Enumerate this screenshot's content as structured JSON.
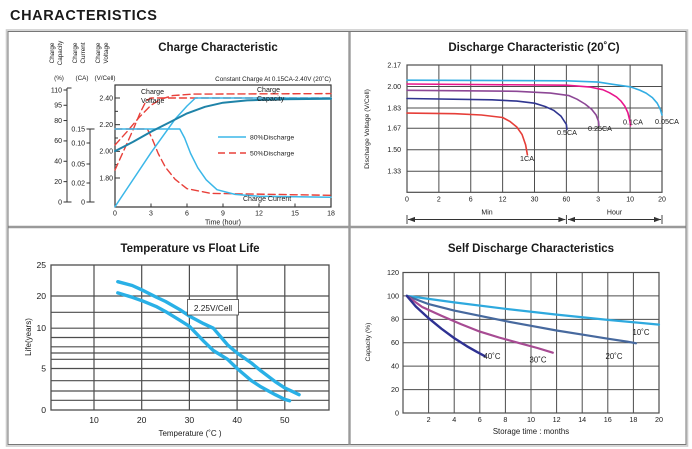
{
  "page": {
    "header": "CHARACTERISTICS",
    "accent_color": "#00a5dc"
  },
  "chart_data": [
    {
      "type": "line",
      "title": "Charge Characteristic",
      "subtitle": "Constant Charge At 0.15CA-2.40V  (20˚C)",
      "xlabel": "Time (hour)",
      "x_ticks": [
        0,
        3,
        6,
        9,
        12,
        15,
        18
      ],
      "axes": {
        "capacity": {
          "title_words": [
            "Charge",
            "Capacity"
          ],
          "unit": "(%)",
          "ticks": {
            "labels": [
              "110",
              "95",
              "80",
              "60",
              "40",
              "20",
              "0"
            ],
            "values": [
              110,
              95,
              80,
              60,
              40,
              20,
              0
            ]
          }
        },
        "current": {
          "title_words": [
            "Charge",
            "Current"
          ],
          "unit": "(CA)",
          "ticks": {
            "labels": [
              "0.15",
              "0.10",
              "0.05",
              "0.02",
              "0"
            ],
            "values": [
              0.15,
              0.1,
              0.05,
              0.02,
              0
            ]
          }
        },
        "voltage": {
          "title_words": [
            "Charge",
            "Voltage"
          ],
          "unit": "(V/Cell)",
          "ticks": {
            "labels": [
              "2.40",
              "2.20",
              "2.00",
              "1.80"
            ],
            "values": [
              2.4,
              2.2,
              2.0,
              1.8
            ]
          }
        }
      },
      "legend": [
        {
          "label": "80%Discharge",
          "color": "#3bb7e8",
          "dash": null
        },
        {
          "label": "50%Discharge",
          "color": "#e8403a",
          "dash": "7 4"
        }
      ],
      "annotations": {
        "voltage": [
          "Charge",
          "Voltage"
        ],
        "capacity": [
          "Charge",
          "Capacity"
        ],
        "current": "Charge Current"
      },
      "series": [
        {
          "name": "Charge Voltage (50% discharged)",
          "scale": "voltage",
          "color": "#e8403a",
          "dash": "7 4",
          "width": 1.4,
          "points": [
            [
              0,
              1.86
            ],
            [
              0.8,
              2.02
            ],
            [
              1.5,
              2.16
            ],
            [
              2.1,
              2.29
            ],
            [
              2.6,
              2.38
            ],
            [
              3,
              2.4
            ],
            [
              18,
              2.4
            ]
          ]
        },
        {
          "name": "Charge Capacity (50% discharged)",
          "scale": "capacity",
          "color": "#e8403a",
          "dash": "7 4",
          "width": 1.4,
          "points": [
            [
              0,
              56
            ],
            [
              1,
              69
            ],
            [
              2,
              83
            ],
            [
              3,
              95
            ],
            [
              3.8,
              101
            ],
            [
              4.8,
              104.5
            ],
            [
              6.5,
              106
            ],
            [
              18,
              106.5
            ]
          ]
        },
        {
          "name": "Charge Current (50% discharged)",
          "scale": "current",
          "color": "#e8403a",
          "dash": "7 4",
          "width": 1.4,
          "points": [
            [
              0,
              0.15
            ],
            [
              2.7,
              0.15
            ],
            [
              3.1,
              0.115
            ],
            [
              3.6,
              0.075
            ],
            [
              4.2,
              0.045
            ],
            [
              5,
              0.026
            ],
            [
              6,
              0.014
            ],
            [
              8,
              0.009
            ],
            [
              18,
              0.007
            ]
          ]
        },
        {
          "name": "Charge Voltage (80% discharged)",
          "scale": "voltage",
          "color": "#3bb7e8",
          "dash": null,
          "width": 1.5,
          "points": [
            [
              0,
              1.585
            ],
            [
              3,
              1.99
            ],
            [
              5,
              2.24
            ],
            [
              6,
              2.34
            ],
            [
              6.7,
              2.4
            ],
            [
              18,
              2.4
            ]
          ]
        },
        {
          "name": "Charge Current (80% discharged)",
          "scale": "current",
          "color": "#3bb7e8",
          "dash": null,
          "width": 1.5,
          "points": [
            [
              0,
              0.15
            ],
            [
              5.4,
              0.15
            ],
            [
              5.8,
              0.118
            ],
            [
              6.3,
              0.075
            ],
            [
              6.9,
              0.044
            ],
            [
              7.6,
              0.025
            ],
            [
              8.5,
              0.013
            ],
            [
              10,
              0.008
            ],
            [
              12,
              0.006
            ],
            [
              18,
              0.005
            ]
          ]
        },
        {
          "name": "Charge Capacity (80% discharged)",
          "scale": "capacity",
          "color": "#1f83a8",
          "dash": null,
          "width": 2,
          "points": [
            [
              0,
              50
            ],
            [
              1.5,
              59
            ],
            [
              3,
              69
            ],
            [
              4.5,
              78
            ],
            [
              6,
              87
            ],
            [
              7.5,
              93.5
            ],
            [
              9,
              97.5
            ],
            [
              11,
              99.8
            ],
            [
              14,
              101
            ],
            [
              18,
              101.5
            ]
          ]
        }
      ]
    },
    {
      "type": "line",
      "title": "Discharge Characteristic (20˚C)",
      "ylabel": "Discharge Voltage (V/Cell)",
      "section_labels": {
        "min": "Min",
        "hour": "Hour"
      },
      "x_ticks": {
        "labels": [
          "0",
          "2",
          "6",
          "12",
          "30",
          "60",
          "3",
          "10",
          "20"
        ],
        "values": [
          0,
          2,
          6,
          12,
          30,
          60,
          180,
          600,
          1200
        ]
      },
      "y_ticks": {
        "labels": [
          "2.17",
          "2.00",
          "1.83",
          "1.67",
          "1.50",
          "1.33"
        ],
        "values": [
          2.17,
          2.0,
          1.83,
          1.67,
          1.5,
          1.33
        ]
      },
      "series": [
        {
          "name": "1CA",
          "color": "#e63e38",
          "width": 1.6,
          "points": [
            [
              0,
              1.79
            ],
            [
              4,
              1.785
            ],
            [
              8,
              1.775
            ],
            [
              12,
              1.755
            ],
            [
              16,
              1.725
            ],
            [
              20,
              1.68
            ],
            [
              23,
              1.62
            ],
            [
              25,
              1.54
            ],
            [
              26,
              1.46
            ]
          ]
        },
        {
          "name": "0.5CA",
          "color": "#2f3590",
          "width": 1.6,
          "points": [
            [
              0,
              1.905
            ],
            [
              10,
              1.895
            ],
            [
              20,
              1.885
            ],
            [
              30,
              1.868
            ],
            [
              40,
              1.842
            ],
            [
              48,
              1.812
            ],
            [
              55,
              1.765
            ],
            [
              60,
              1.7
            ],
            [
              62,
              1.66
            ]
          ]
        },
        {
          "name": "0.25CA",
          "color": "#8d4896",
          "width": 1.6,
          "points": [
            [
              0,
              1.97
            ],
            [
              20,
              1.962
            ],
            [
              45,
              1.948
            ],
            [
              70,
              1.928
            ],
            [
              100,
              1.9
            ],
            [
              130,
              1.862
            ],
            [
              155,
              1.82
            ],
            [
              172,
              1.775
            ],
            [
              183,
              1.725
            ],
            [
              188,
              1.69
            ]
          ]
        },
        {
          "name": "0.1CA",
          "color": "#e8168c",
          "width": 1.6,
          "points": [
            [
              0,
              2.02
            ],
            [
              60,
              2.01
            ],
            [
              150,
              1.995
            ],
            [
              240,
              1.975
            ],
            [
              330,
              1.95
            ],
            [
              420,
              1.918
            ],
            [
              480,
              1.885
            ],
            [
              530,
              1.845
            ],
            [
              570,
              1.795
            ],
            [
              595,
              1.735
            ],
            [
              608,
              1.69
            ]
          ]
        },
        {
          "name": "0.05CA",
          "color": "#33ade3",
          "width": 1.6,
          "points": [
            [
              0,
              2.05
            ],
            [
              60,
              2.045
            ],
            [
              180,
              2.035
            ],
            [
              360,
              2.018
            ],
            [
              600,
              1.998
            ],
            [
              780,
              1.972
            ],
            [
              900,
              1.948
            ],
            [
              1020,
              1.912
            ],
            [
              1110,
              1.868
            ],
            [
              1170,
              1.818
            ],
            [
              1200,
              1.775
            ]
          ]
        }
      ]
    },
    {
      "type": "line",
      "title": "Temperature vs Float Life",
      "ylabel": "Life(years)",
      "xlabel": "Temperature (˚C )",
      "annotation": "2.25V/Cell",
      "x_ticks": [
        10,
        20,
        30,
        40,
        50
      ],
      "y_ticks": {
        "labels": [
          "25",
          "20",
          "10",
          "5",
          "0"
        ],
        "values": [
          25,
          20,
          10,
          5,
          0
        ]
      },
      "y_gridlines": [
        2,
        3,
        4,
        5,
        6,
        7,
        8,
        9,
        10,
        15,
        20
      ],
      "series": [
        {
          "name": "float life upper",
          "color": "#29b0e6",
          "width": 3.4,
          "points": [
            [
              15,
              22.3
            ],
            [
              18,
              21.7
            ],
            [
              20,
              21
            ],
            [
              23,
              19.7
            ],
            [
              25,
              18.3
            ],
            [
              28,
              15.8
            ],
            [
              30,
              13.8
            ],
            [
              33,
              11.4
            ],
            [
              35,
              10
            ],
            [
              38,
              8.2
            ],
            [
              40,
              7
            ],
            [
              43,
              5.6
            ],
            [
              45,
              4.8
            ],
            [
              48,
              3.9
            ],
            [
              50,
              3.3
            ],
            [
              53,
              2.6
            ]
          ]
        },
        {
          "name": "float life lower",
          "color": "#29b0e6",
          "width": 3.4,
          "points": [
            [
              15,
              20.5
            ],
            [
              18,
              19.6
            ],
            [
              20,
              18.6
            ],
            [
              23,
              16.8
            ],
            [
              25,
              15.2
            ],
            [
              28,
              12.5
            ],
            [
              30,
              10.6
            ],
            [
              33,
              8.6
            ],
            [
              35,
              7.4
            ],
            [
              38,
              6
            ],
            [
              40,
              5
            ],
            [
              43,
              4
            ],
            [
              45,
              3.4
            ],
            [
              48,
              2.6
            ],
            [
              50,
              2.1
            ],
            [
              51,
              1.9
            ]
          ]
        }
      ]
    },
    {
      "type": "line",
      "title": "Self Discharge Characteristics",
      "ylabel": "Capacity (%)",
      "xlabel": "Storage time : months",
      "x_ticks": [
        2,
        4,
        6,
        8,
        10,
        12,
        14,
        16,
        18,
        20
      ],
      "y_ticks": {
        "labels": [
          "120",
          "100",
          "80",
          "60",
          "40",
          "20",
          "0"
        ],
        "values": [
          120,
          100,
          80,
          60,
          40,
          20,
          0
        ]
      },
      "series": [
        {
          "name": "10˚C",
          "color": "#2ea9de",
          "width": 2.2,
          "points": [
            [
              0.3,
              100
            ],
            [
              4,
              94.5
            ],
            [
              8,
              89
            ],
            [
              12,
              84
            ],
            [
              16,
              79.5
            ],
            [
              20,
              75.5
            ]
          ]
        },
        {
          "name": "20˚C",
          "color": "#47699e",
          "width": 2.2,
          "points": [
            [
              0.3,
              100
            ],
            [
              2,
              93
            ],
            [
              4,
              87.5
            ],
            [
              6,
              83
            ],
            [
              8,
              78.5
            ],
            [
              10,
              74.5
            ],
            [
              12,
              70.5
            ],
            [
              14,
              67
            ],
            [
              16,
              63.5
            ],
            [
              17.5,
              61
            ],
            [
              18.2,
              59.5
            ]
          ]
        },
        {
          "name": "30˚C",
          "color": "#a74b93",
          "width": 2.2,
          "points": [
            [
              0.3,
              100
            ],
            [
              1.5,
              90.5
            ],
            [
              3,
              83
            ],
            [
              4.5,
              76
            ],
            [
              6,
              69.5
            ],
            [
              7.5,
              64.5
            ],
            [
              9,
              60
            ],
            [
              10.5,
              55.5
            ],
            [
              11.7,
              51.5
            ]
          ]
        },
        {
          "name": "40˚C",
          "color": "#2e3192",
          "width": 2.4,
          "points": [
            [
              0.3,
              100
            ],
            [
              1,
              91
            ],
            [
              2,
              81
            ],
            [
              3,
              72
            ],
            [
              4,
              64
            ],
            [
              5,
              57
            ],
            [
              5.8,
              52
            ],
            [
              6.4,
              48.5
            ]
          ]
        }
      ]
    }
  ]
}
